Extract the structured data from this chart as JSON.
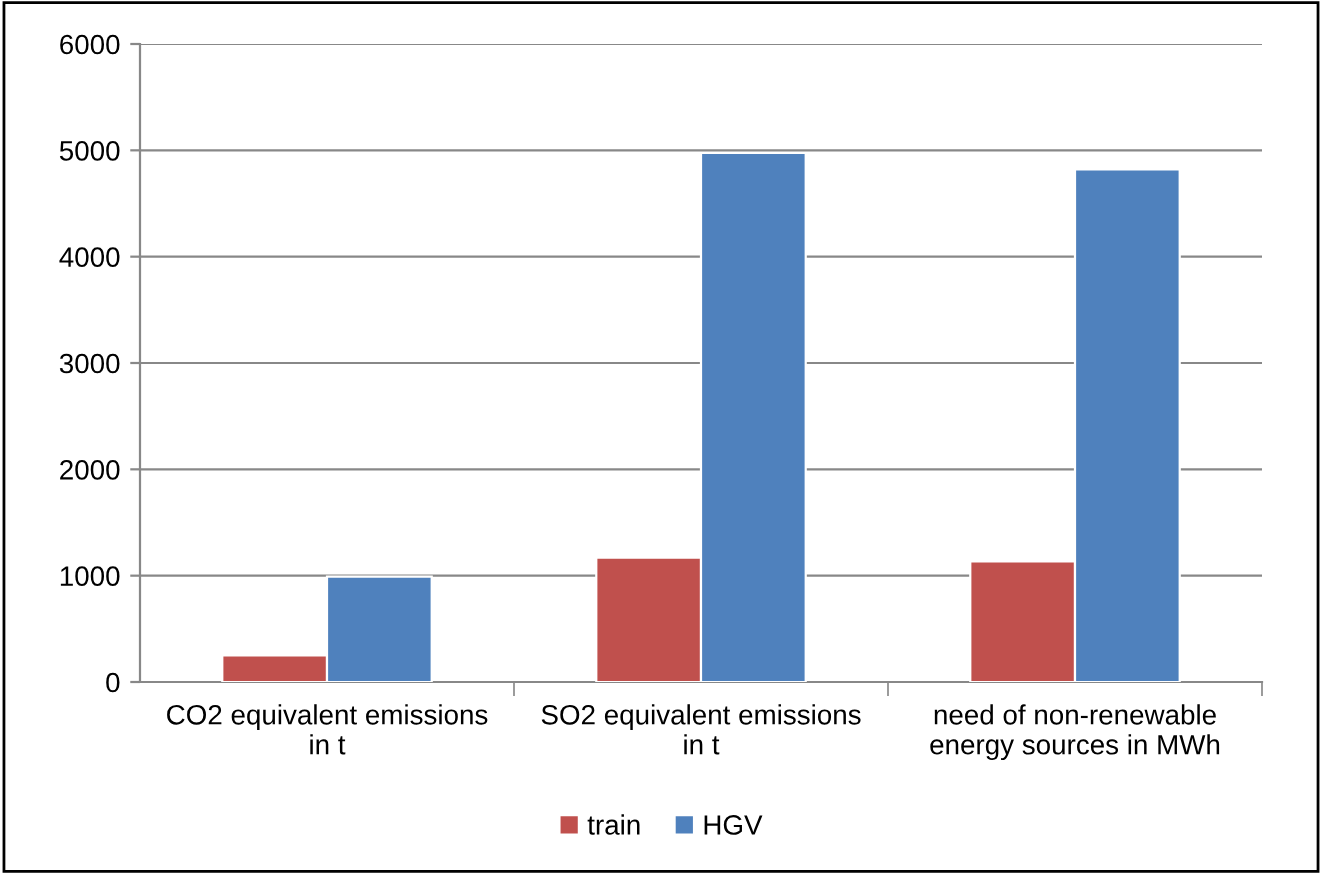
{
  "chart_data": {
    "type": "bar",
    "categories": [
      "CO2 equivalent emissions\nin t",
      "SO2 equivalent emissions\nin t",
      "need of non-renewable\nenergy sources in MWh"
    ],
    "series": [
      {
        "name": "train",
        "color": "#c0504d",
        "values": [
          250,
          1170,
          1135
        ]
      },
      {
        "name": "HGV",
        "color": "#4f81bd",
        "values": [
          990,
          4975,
          4820
        ]
      }
    ],
    "ylim": [
      0,
      6000
    ],
    "yticks": [
      0,
      1000,
      2000,
      3000,
      4000,
      5000,
      6000
    ],
    "grid": "y",
    "legend": "bottom"
  }
}
